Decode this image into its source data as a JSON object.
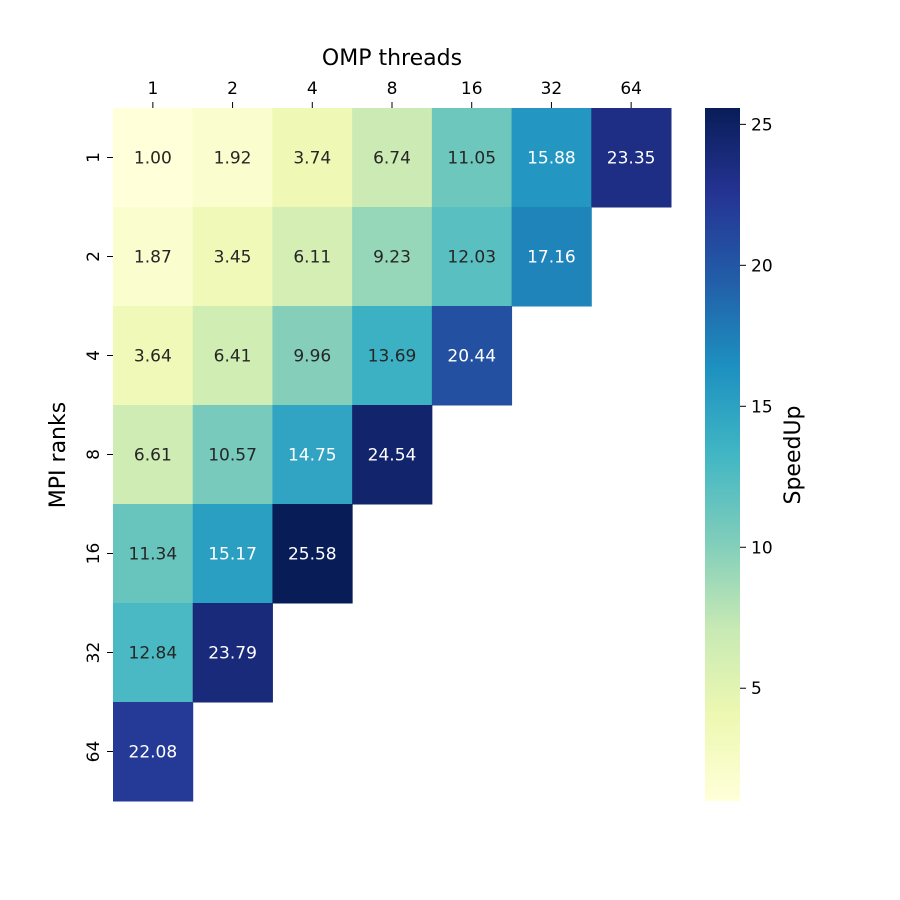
{
  "chart_data": {
    "type": "heatmap",
    "title": "",
    "xlabel": "OMP threads",
    "ylabel": "MPI ranks",
    "x_categories": [
      "1",
      "2",
      "4",
      "8",
      "16",
      "32",
      "64"
    ],
    "y_categories": [
      "1",
      "2",
      "4",
      "8",
      "16",
      "32",
      "64"
    ],
    "values": [
      [
        1.0,
        1.92,
        3.74,
        6.74,
        11.05,
        15.88,
        23.35
      ],
      [
        1.87,
        3.45,
        6.11,
        9.23,
        12.03,
        17.16,
        null
      ],
      [
        3.64,
        6.41,
        9.96,
        13.69,
        20.44,
        null,
        null
      ],
      [
        6.61,
        10.57,
        14.75,
        24.54,
        null,
        null,
        null
      ],
      [
        11.34,
        15.17,
        25.58,
        null,
        null,
        null,
        null
      ],
      [
        12.84,
        23.79,
        null,
        null,
        null,
        null,
        null
      ],
      [
        22.08,
        null,
        null,
        null,
        null,
        null,
        null
      ]
    ],
    "colormap": "YlGnBu",
    "colormap_stops": [
      "#ffffd9",
      "#edf8b1",
      "#c7e9b4",
      "#7fcdbb",
      "#41b6c4",
      "#1d91c0",
      "#225ea8",
      "#253494",
      "#081d58"
    ],
    "value_range": [
      1.0,
      25.58
    ],
    "colorbar": {
      "label": "SpeedUp",
      "ticks": [
        5,
        10,
        15,
        20,
        25
      ],
      "position": "right"
    },
    "x_axis_position": "top",
    "grid": false
  }
}
